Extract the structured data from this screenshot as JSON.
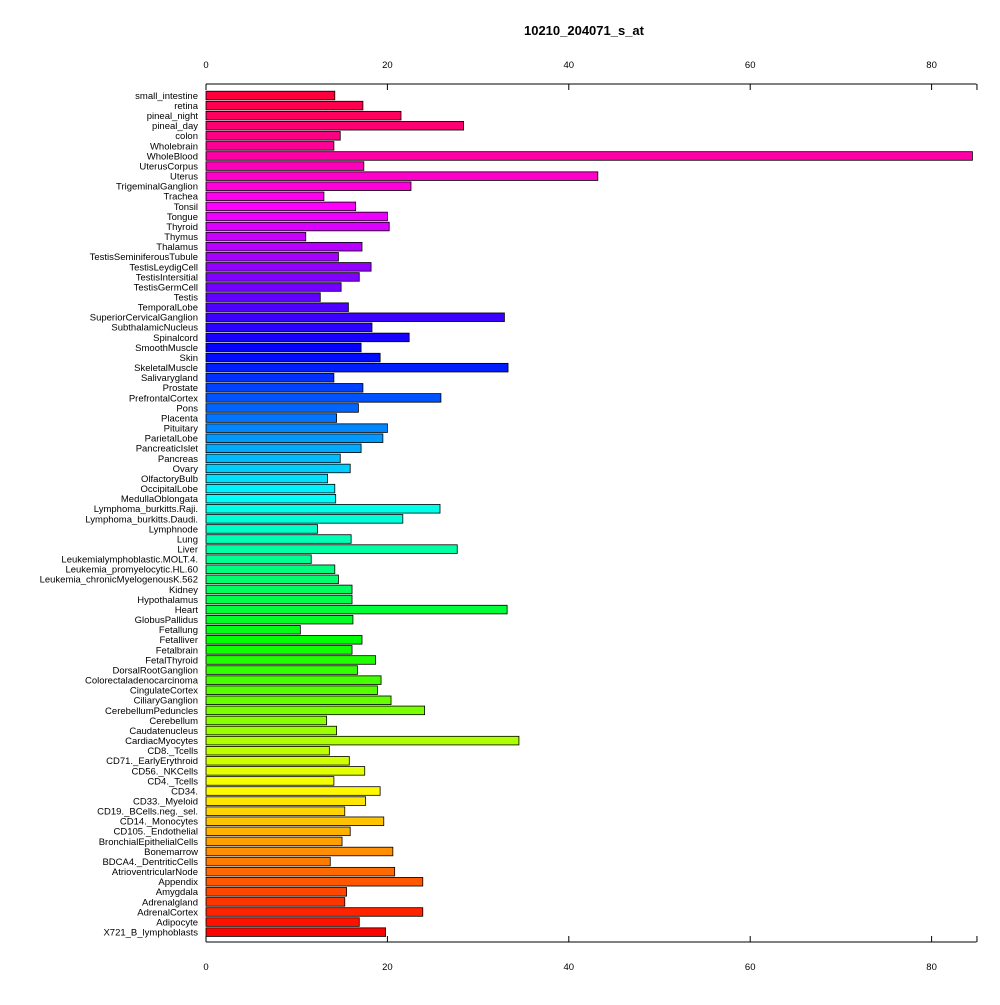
{
  "chart_data": {
    "type": "bar",
    "orientation": "horizontal",
    "title": "10210_204071_s_at",
    "xlabel": "",
    "ylabel": "",
    "xlim": [
      0,
      85
    ],
    "xticks": [
      0,
      20,
      40,
      60,
      80
    ],
    "grid": false,
    "color_scheme": "rainbow",
    "categories": [
      "small_intestine",
      "retina",
      "pineal_night",
      "pineal_day",
      "colon",
      "Wholebrain",
      "WholeBlood",
      "UterusCorpus",
      "Uterus",
      "TrigeminalGanglion",
      "Trachea",
      "Tonsil",
      "Tongue",
      "Thyroid",
      "Thymus",
      "Thalamus",
      "TestisSeminiferousTubule",
      "TestisLeydigCell",
      "TestisIntersitial",
      "TestisGermCell",
      "Testis",
      "TemporalLobe",
      "SuperiorCervicalGanglion",
      "SubthalamicNucleus",
      "Spinalcord",
      "SmoothMuscle",
      "Skin",
      "SkeletalMuscle",
      "Salivarygland",
      "Prostate",
      "PrefrontalCortex",
      "Pons",
      "Placenta",
      "Pituitary",
      "ParietalLobe",
      "PancreaticIslet",
      "Pancreas",
      "Ovary",
      "OlfactoryBulb",
      "OccipitalLobe",
      "MedullaOblongata",
      "Lymphoma_burkitts.Raji.",
      "Lymphoma_burkitts.Daudi.",
      "Lymphnode",
      "Lung",
      "Liver",
      "Leukemialymphoblastic.MOLT.4.",
      "Leukemia_promyelocytic.HL.60",
      "Leukemia_chronicMyelogenousK.562",
      "Kidney",
      "Hypothalamus",
      "Heart",
      "GlobusPallidus",
      "Fetallung",
      "Fetalliver",
      "Fetalbrain",
      "FetalThyroid",
      "DorsalRootGanglion",
      "Colorectaladenocarcinoma",
      "CingulateCortex",
      "CiliaryGanglion",
      "CerebellumPeduncles",
      "Cerebellum",
      "Caudatenucleus",
      "CardiacMyocytes",
      "CD8._Tcells",
      "CD71._EarlyErythroid",
      "CD56._NKCells",
      "CD4._Tcells",
      "CD34.",
      "CD33._Myeloid",
      "CD19._BCells.neg._sel.",
      "CD14._Monocytes",
      "CD105._Endothelial",
      "BronchialEpithelialCells",
      "Bonemarrow",
      "BDCA4._DentriticCells",
      "AtrioventricularNode",
      "Appendix",
      "Amygdala",
      "Adrenalgland",
      "AdrenalCortex",
      "Adipocyte",
      "X721_B_lymphoblasts"
    ],
    "values": [
      14.2,
      17.3,
      21.5,
      28.4,
      14.8,
      14.1,
      84.5,
      17.4,
      43.2,
      22.6,
      13.0,
      16.5,
      20.0,
      20.2,
      11.0,
      17.2,
      14.6,
      18.2,
      16.9,
      14.9,
      12.6,
      15.7,
      32.9,
      18.3,
      22.4,
      17.1,
      19.2,
      33.3,
      14.1,
      17.3,
      25.9,
      16.8,
      14.4,
      20.0,
      19.5,
      17.1,
      14.8,
      15.9,
      13.4,
      14.2,
      14.3,
      25.8,
      21.7,
      12.3,
      16.0,
      27.7,
      11.6,
      14.2,
      14.6,
      16.1,
      16.1,
      33.2,
      16.2,
      10.4,
      17.2,
      16.1,
      18.7,
      16.7,
      19.3,
      18.9,
      20.4,
      24.1,
      13.3,
      14.4,
      34.5,
      13.6,
      15.8,
      17.5,
      14.1,
      19.2,
      17.6,
      15.3,
      19.6,
      15.9,
      15.0,
      20.6,
      13.7,
      20.8,
      23.9,
      15.5,
      15.3,
      23.9,
      16.9,
      19.8
    ]
  }
}
